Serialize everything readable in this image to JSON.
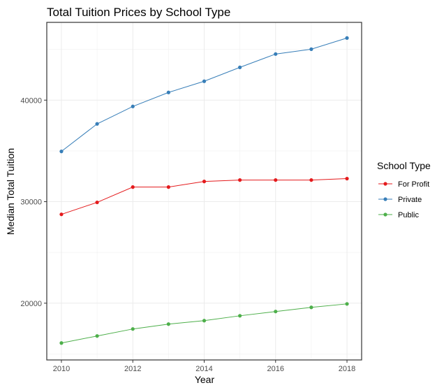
{
  "chart_data": {
    "type": "line",
    "title": "Total Tuition Prices by School Type",
    "xlabel": "Year",
    "ylabel": "Median Total Tuition",
    "x": [
      2010,
      2011,
      2012,
      2013,
      2014,
      2015,
      2016,
      2017,
      2018
    ],
    "xlim": [
      2009.59,
      2018.41
    ],
    "ylim": [
      14410,
      47660
    ],
    "xticks": [
      2010,
      2012,
      2014,
      2016,
      2018
    ],
    "xtick_labels": [
      "2010",
      "2012",
      "2014",
      "2016",
      "2018"
    ],
    "yticks": [
      20000,
      30000,
      40000
    ],
    "ytick_labels": [
      "20000",
      "30000",
      "40000"
    ],
    "grid": true,
    "legend": {
      "title": "School Type",
      "placement": "right"
    },
    "series": [
      {
        "name": "For Profit",
        "color": "#E41A1C",
        "values": [
          28750,
          29930,
          31440,
          31440,
          31990,
          32130,
          32130,
          32130,
          32270
        ]
      },
      {
        "name": "Private",
        "color": "#377EB8",
        "values": [
          34950,
          37660,
          39380,
          40760,
          41860,
          43230,
          44540,
          45020,
          46120
        ]
      },
      {
        "name": "Public",
        "color": "#4DAF4A",
        "values": [
          16080,
          16770,
          17460,
          17940,
          18280,
          18760,
          19180,
          19590,
          19930
        ]
      }
    ]
  }
}
